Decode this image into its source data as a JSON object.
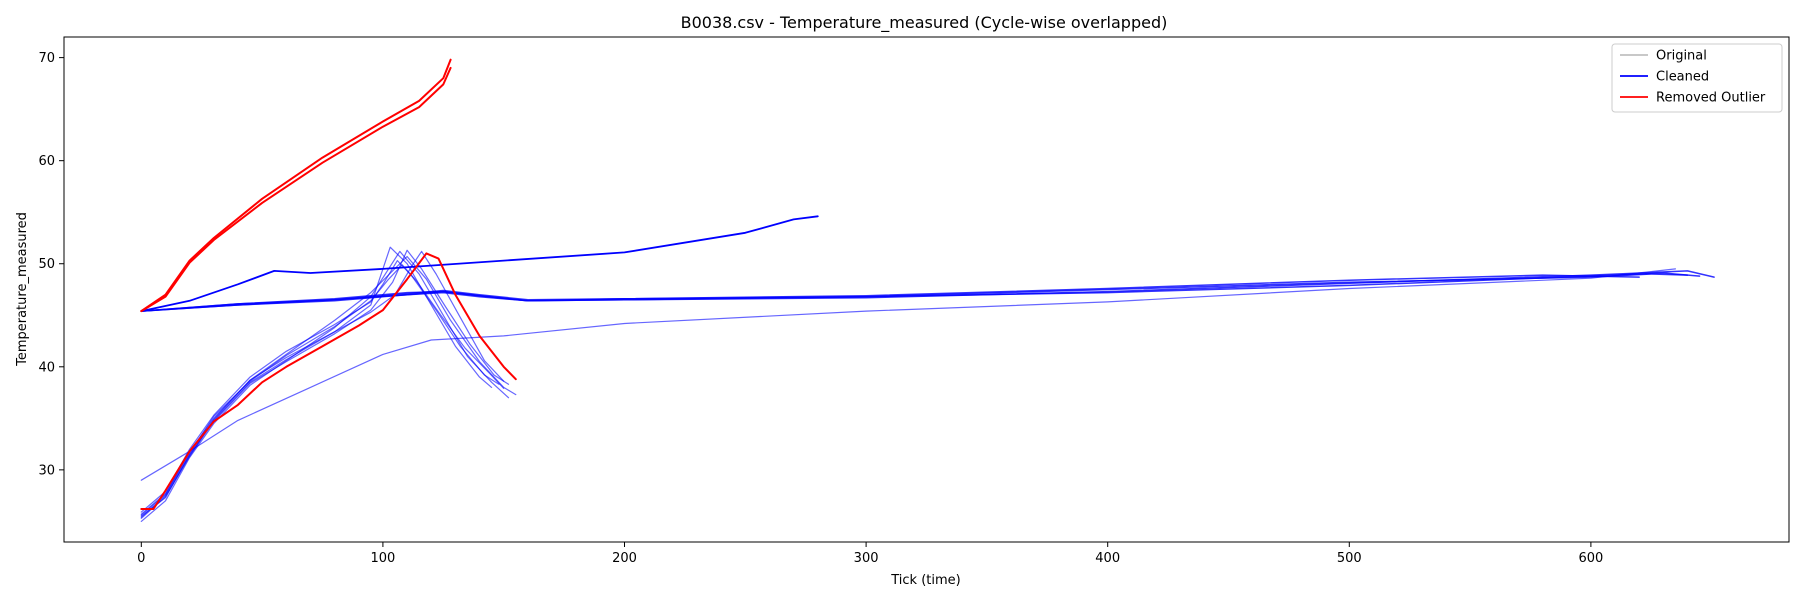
{
  "chart_data": {
    "type": "line",
    "title": "B0038.csv - Temperature_measured (Cycle-wise overlapped)",
    "xlabel": "Tick (time)",
    "ylabel": "Temperature_measured",
    "xlim": [
      -32,
      682
    ],
    "ylim": [
      23,
      72
    ],
    "xticks": [
      0,
      100,
      200,
      300,
      400,
      500,
      600
    ],
    "yticks": [
      30,
      40,
      50,
      60,
      70
    ],
    "grid": false,
    "legend": {
      "placement": "top-right",
      "entries": [
        {
          "label": "Original",
          "color": "#c0c0c0"
        },
        {
          "label": "Cleaned",
          "color": "#0000ff"
        },
        {
          "label": "Removed Outlier",
          "color": "#ff0000"
        }
      ]
    },
    "series": [
      {
        "name": "Cleaned",
        "color": "#0000ff",
        "width": 1.8,
        "opacity": 1.0,
        "points": [
          [
            0,
            45.4
          ],
          [
            20,
            46.4
          ],
          [
            40,
            48.0
          ],
          [
            55,
            49.3
          ],
          [
            70,
            49.1
          ],
          [
            100,
            49.5
          ],
          [
            150,
            50.3
          ],
          [
            200,
            51.1
          ],
          [
            250,
            53.0
          ],
          [
            270,
            54.3
          ],
          [
            280,
            54.6
          ]
        ]
      },
      {
        "name": "Cleaned",
        "color": "#0000ff",
        "width": 1.5,
        "opacity": 0.8,
        "points": [
          [
            0,
            45.4
          ],
          [
            40,
            46.1
          ],
          [
            80,
            46.6
          ],
          [
            110,
            47.2
          ],
          [
            125,
            47.3
          ],
          [
            140,
            46.9
          ],
          [
            160,
            46.4
          ],
          [
            200,
            46.5
          ],
          [
            300,
            46.7
          ],
          [
            400,
            47.3
          ],
          [
            500,
            48.1
          ],
          [
            600,
            48.9
          ],
          [
            640,
            49.3
          ],
          [
            651,
            48.7
          ]
        ]
      },
      {
        "name": "Cleaned",
        "color": "#0000ff",
        "width": 1.5,
        "opacity": 0.8,
        "points": [
          [
            0,
            45.4
          ],
          [
            40,
            46.0
          ],
          [
            80,
            46.4
          ],
          [
            110,
            47.0
          ],
          [
            125,
            47.2
          ],
          [
            140,
            46.8
          ],
          [
            160,
            46.4
          ],
          [
            200,
            46.5
          ],
          [
            300,
            46.8
          ],
          [
            400,
            47.5
          ],
          [
            500,
            48.2
          ],
          [
            600,
            48.7
          ],
          [
            625,
            49.0
          ],
          [
            640,
            48.9
          ]
        ]
      },
      {
        "name": "Cleaned",
        "color": "#0000ff",
        "width": 1.5,
        "opacity": 0.8,
        "points": [
          [
            0,
            45.4
          ],
          [
            40,
            46.1
          ],
          [
            80,
            46.5
          ],
          [
            110,
            47.1
          ],
          [
            125,
            47.4
          ],
          [
            140,
            47.0
          ],
          [
            160,
            46.5
          ],
          [
            200,
            46.6
          ],
          [
            300,
            46.8
          ],
          [
            400,
            47.2
          ],
          [
            500,
            47.9
          ],
          [
            600,
            48.8
          ],
          [
            630,
            49.1
          ],
          [
            645,
            48.8
          ]
        ]
      },
      {
        "name": "Cleaned",
        "color": "#0000ff",
        "width": 1.5,
        "opacity": 0.8,
        "points": [
          [
            0,
            45.4
          ],
          [
            40,
            46.0
          ],
          [
            80,
            46.5
          ],
          [
            110,
            47.0
          ],
          [
            125,
            47.3
          ],
          [
            140,
            46.9
          ],
          [
            160,
            46.4
          ],
          [
            200,
            46.6
          ],
          [
            300,
            46.9
          ],
          [
            400,
            47.6
          ],
          [
            500,
            48.4
          ],
          [
            580,
            48.9
          ],
          [
            620,
            48.7
          ]
        ]
      },
      {
        "name": "Cleaned",
        "color": "#0000ff",
        "width": 1.2,
        "opacity": 0.6,
        "points": [
          [
            0,
            29.0
          ],
          [
            20,
            31.8
          ],
          [
            40,
            34.8
          ],
          [
            70,
            38.0
          ],
          [
            100,
            41.2
          ],
          [
            120,
            42.6
          ],
          [
            150,
            43.0
          ],
          [
            200,
            44.2
          ],
          [
            300,
            45.4
          ],
          [
            400,
            46.3
          ],
          [
            500,
            47.6
          ],
          [
            600,
            48.6
          ],
          [
            635,
            49.5
          ]
        ]
      },
      {
        "name": "Cleaned",
        "color": "#0000ff",
        "width": 1.2,
        "opacity": 0.6,
        "points": [
          [
            0,
            25.5
          ],
          [
            10,
            27.3
          ],
          [
            20,
            31.5
          ],
          [
            30,
            34.8
          ],
          [
            45,
            38.5
          ],
          [
            60,
            40.7
          ],
          [
            80,
            43.4
          ],
          [
            95,
            46.0
          ],
          [
            103,
            51.6
          ],
          [
            110,
            50.0
          ],
          [
            120,
            46.0
          ],
          [
            130,
            42.0
          ],
          [
            140,
            39.0
          ],
          [
            145,
            38.0
          ]
        ]
      },
      {
        "name": "Cleaned",
        "color": "#0000ff",
        "width": 1.2,
        "opacity": 0.6,
        "points": [
          [
            0,
            25.0
          ],
          [
            10,
            27.0
          ],
          [
            20,
            31.2
          ],
          [
            30,
            34.5
          ],
          [
            45,
            38.2
          ],
          [
            60,
            40.6
          ],
          [
            80,
            43.8
          ],
          [
            95,
            46.8
          ],
          [
            107,
            51.2
          ],
          [
            115,
            49.0
          ],
          [
            125,
            45.0
          ],
          [
            135,
            41.0
          ],
          [
            145,
            38.5
          ],
          [
            152,
            37.0
          ]
        ]
      },
      {
        "name": "Cleaned",
        "color": "#0000ff",
        "width": 1.2,
        "opacity": 0.6,
        "points": [
          [
            0,
            25.6
          ],
          [
            10,
            27.6
          ],
          [
            20,
            31.8
          ],
          [
            30,
            35.0
          ],
          [
            45,
            38.7
          ],
          [
            60,
            41.2
          ],
          [
            80,
            44.5
          ],
          [
            95,
            47.2
          ],
          [
            110,
            50.7
          ],
          [
            118,
            48.5
          ],
          [
            128,
            44.5
          ],
          [
            140,
            40.5
          ],
          [
            150,
            38.0
          ],
          [
            155,
            37.3
          ]
        ]
      },
      {
        "name": "Cleaned",
        "color": "#0000ff",
        "width": 1.2,
        "opacity": 0.6,
        "points": [
          [
            0,
            25.9
          ],
          [
            10,
            27.9
          ],
          [
            20,
            32.0
          ],
          [
            30,
            35.3
          ],
          [
            45,
            39.0
          ],
          [
            60,
            41.5
          ],
          [
            80,
            44.1
          ],
          [
            95,
            46.3
          ],
          [
            100,
            48.0
          ],
          [
            106,
            50.3
          ],
          [
            112,
            48.8
          ],
          [
            122,
            45.5
          ],
          [
            132,
            42.0
          ],
          [
            142,
            39.2
          ],
          [
            148,
            38.3
          ]
        ]
      },
      {
        "name": "Cleaned",
        "color": "#0000ff",
        "width": 1.2,
        "opacity": 0.6,
        "points": [
          [
            0,
            25.3
          ],
          [
            10,
            27.4
          ],
          [
            20,
            31.3
          ],
          [
            30,
            34.9
          ],
          [
            45,
            38.7
          ],
          [
            60,
            40.9
          ],
          [
            80,
            43.4
          ],
          [
            95,
            45.3
          ],
          [
            105,
            47.0
          ],
          [
            112,
            49.8
          ],
          [
            116,
            51.2
          ],
          [
            122,
            49.0
          ],
          [
            132,
            44.8
          ],
          [
            142,
            40.6
          ],
          [
            150,
            38.6
          ]
        ]
      },
      {
        "name": "Cleaned",
        "color": "#0000ff",
        "width": 1.2,
        "opacity": 0.6,
        "points": [
          [
            0,
            25.7
          ],
          [
            10,
            27.7
          ],
          [
            20,
            31.6
          ],
          [
            30,
            35.2
          ],
          [
            45,
            38.6
          ],
          [
            60,
            41.1
          ],
          [
            80,
            43.9
          ],
          [
            95,
            46.4
          ],
          [
            102,
            48.4
          ],
          [
            108,
            49.9
          ],
          [
            114,
            48.3
          ],
          [
            124,
            45.0
          ],
          [
            134,
            41.8
          ],
          [
            144,
            39.4
          ],
          [
            150,
            37.9
          ]
        ]
      },
      {
        "name": "Cleaned",
        "color": "#0000ff",
        "width": 1.2,
        "opacity": 0.6,
        "points": [
          [
            0,
            25.4
          ],
          [
            10,
            27.5
          ],
          [
            20,
            31.4
          ],
          [
            30,
            34.7
          ],
          [
            45,
            38.4
          ],
          [
            60,
            40.5
          ],
          [
            80,
            43.2
          ],
          [
            95,
            45.5
          ],
          [
            104,
            48.2
          ],
          [
            110,
            51.3
          ],
          [
            116,
            49.5
          ],
          [
            126,
            45.8
          ],
          [
            136,
            42.2
          ],
          [
            146,
            39.2
          ],
          [
            152,
            38.3
          ]
        ]
      },
      {
        "name": "Removed Outlier",
        "color": "#ff0000",
        "width": 2.0,
        "opacity": 1.0,
        "points": [
          [
            0,
            45.4
          ],
          [
            10,
            47.0
          ],
          [
            20,
            50.3
          ],
          [
            30,
            52.5
          ],
          [
            50,
            56.3
          ],
          [
            75,
            60.3
          ],
          [
            100,
            63.8
          ],
          [
            115,
            65.8
          ],
          [
            125,
            68.0
          ],
          [
            128,
            69.8
          ]
        ]
      },
      {
        "name": "Removed Outlier",
        "color": "#ff0000",
        "width": 2.0,
        "opacity": 1.0,
        "points": [
          [
            0,
            45.4
          ],
          [
            10,
            46.8
          ],
          [
            20,
            50.1
          ],
          [
            30,
            52.3
          ],
          [
            50,
            55.9
          ],
          [
            75,
            59.8
          ],
          [
            100,
            63.3
          ],
          [
            115,
            65.2
          ],
          [
            125,
            67.4
          ],
          [
            128,
            69.0
          ]
        ]
      },
      {
        "name": "Removed Outlier",
        "color": "#ff0000",
        "width": 2.0,
        "opacity": 1.0,
        "points": [
          [
            0,
            26.2
          ],
          [
            5,
            26.2
          ],
          [
            10,
            28.0
          ],
          [
            20,
            31.8
          ],
          [
            30,
            34.7
          ],
          [
            40,
            36.3
          ],
          [
            50,
            38.5
          ],
          [
            60,
            40.0
          ],
          [
            75,
            42.0
          ],
          [
            90,
            44.0
          ],
          [
            100,
            45.5
          ],
          [
            110,
            48.5
          ],
          [
            118,
            51.0
          ],
          [
            123,
            50.5
          ],
          [
            130,
            47.0
          ],
          [
            140,
            43.0
          ],
          [
            150,
            40.0
          ],
          [
            155,
            38.8
          ]
        ]
      }
    ]
  }
}
